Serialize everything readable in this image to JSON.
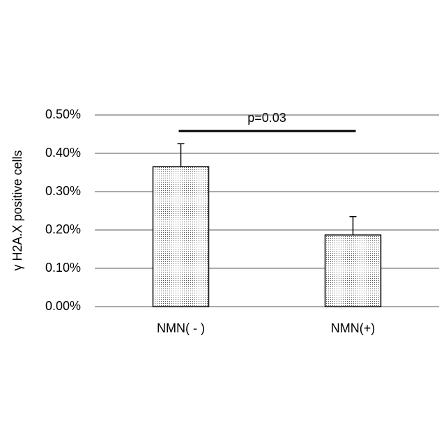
{
  "chart_data": {
    "type": "bar",
    "y_label": "γ H2A.X positive cells",
    "annotation": "p=0.03",
    "categories": [
      "NMN( - )",
      "NMN(+)"
    ],
    "values": [
      0.365,
      0.187
    ],
    "errors": [
      0.06,
      0.048
    ],
    "color": "#e6e6e6",
    "ylim": [
      0,
      0.5
    ],
    "yticks": [
      {
        "value": 0,
        "label": "0.00%"
      },
      {
        "value": 0.1,
        "label": "0.10%"
      },
      {
        "value": 0.2,
        "label": "0.20%"
      },
      {
        "value": 0.3,
        "label": "0.30%"
      },
      {
        "value": 0.4,
        "label": "0.40%"
      },
      {
        "value": 0.5,
        "label": "0.50%"
      }
    ],
    "grid": true
  }
}
